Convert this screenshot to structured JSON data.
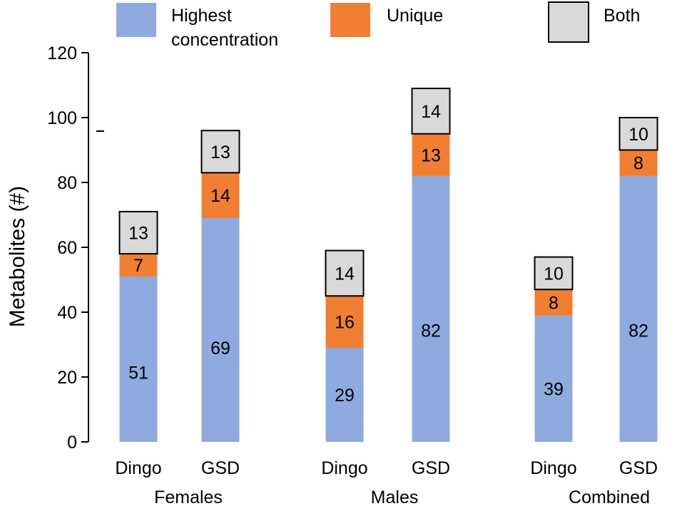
{
  "chart_data": {
    "type": "bar",
    "stacked": true,
    "ylabel": "Metabolites (#)",
    "ylim": [
      0,
      120
    ],
    "yticks": [
      0,
      20,
      40,
      60,
      80,
      100,
      120
    ],
    "legend": {
      "placement": "top",
      "entries": [
        {
          "lines": [
            "Highest",
            "concentration"
          ],
          "color": "#8eaade"
        },
        {
          "lines": [
            "Unique"
          ],
          "color": "#f07f33"
        },
        {
          "lines": [
            "Both"
          ],
          "color": "#d9d9d9"
        }
      ]
    },
    "groups": [
      "Females",
      "Males",
      "Combined"
    ],
    "bars": [
      {
        "label": "Dingo",
        "group": "Females",
        "highest": 51,
        "unique": 7,
        "both": 13
      },
      {
        "label": "GSD",
        "group": "Females",
        "highest": 69,
        "unique": 14,
        "both": 13
      },
      {
        "label": "Dingo",
        "group": "Males",
        "highest": 29,
        "unique": 16,
        "both": 14
      },
      {
        "label": "GSD",
        "group": "Males",
        "highest": 82,
        "unique": 13,
        "both": 14
      },
      {
        "label": "Dingo",
        "group": "Combined",
        "highest": 39,
        "unique": 8,
        "both": 10
      },
      {
        "label": "GSD",
        "group": "Combined",
        "highest": 82,
        "unique": 8,
        "both": 10
      }
    ]
  }
}
